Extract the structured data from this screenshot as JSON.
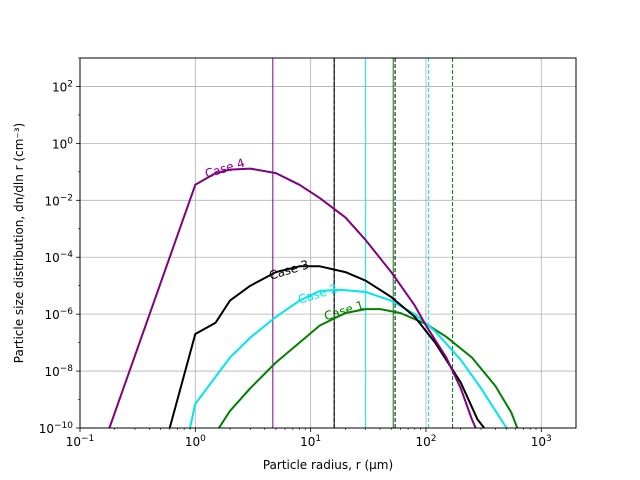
{
  "chart_data": {
    "type": "line",
    "xscale": "log",
    "yscale": "log",
    "xlim": [
      0.1,
      2000
    ],
    "ylim": [
      1e-10,
      1000
    ],
    "grid": true,
    "xlabel": "Particle radius, r (μm)",
    "ylabel": "Particle size distribution, dn/dln r (cm⁻³)",
    "x_ticks": [
      {
        "value": 0.1,
        "base": "10",
        "exp": "−1"
      },
      {
        "value": 1,
        "base": "10",
        "exp": "0"
      },
      {
        "value": 10,
        "base": "10",
        "exp": "1"
      },
      {
        "value": 100,
        "base": "10",
        "exp": "2"
      },
      {
        "value": 1000,
        "base": "10",
        "exp": "3"
      }
    ],
    "y_ticks": [
      {
        "value": 1e-10,
        "base": "10",
        "exp": "−10"
      },
      {
        "value": 1e-08,
        "base": "10",
        "exp": "−8"
      },
      {
        "value": 1e-06,
        "base": "10",
        "exp": "−6"
      },
      {
        "value": 0.0001,
        "base": "10",
        "exp": "−4"
      },
      {
        "value": 0.01,
        "base": "10",
        "exp": "−2"
      },
      {
        "value": 1,
        "base": "10",
        "exp": "0"
      },
      {
        "value": 100,
        "base": "10",
        "exp": "2"
      }
    ],
    "series": [
      {
        "name": "Case 1",
        "color": "#008000",
        "label_pos": [
          13.5,
          6e-07
        ],
        "points": [
          [
            1.6,
            1e-10
          ],
          [
            2,
            4e-10
          ],
          [
            3,
            2.5e-09
          ],
          [
            5,
            2e-08
          ],
          [
            8,
            1e-07
          ],
          [
            12,
            4e-07
          ],
          [
            20,
            1.1e-06
          ],
          [
            30,
            1.5e-06
          ],
          [
            40,
            1.5e-06
          ],
          [
            60,
            1.1e-06
          ],
          [
            100,
            4.5e-07
          ],
          [
            150,
            1.6e-07
          ],
          [
            250,
            3e-08
          ],
          [
            400,
            3e-09
          ],
          [
            550,
            3.5e-10
          ],
          [
            620,
            1e-10
          ]
        ]
      },
      {
        "name": "Case 2",
        "color": "#00e5ee",
        "label_pos": [
          8,
          2.3e-06
        ],
        "points": [
          [
            0.9,
            1e-10
          ],
          [
            1,
            7e-10
          ],
          [
            2,
            3e-08
          ],
          [
            3,
            1.5e-07
          ],
          [
            5,
            8e-07
          ],
          [
            8,
            3e-06
          ],
          [
            12,
            6.5e-06
          ],
          [
            18,
            7.2e-06
          ],
          [
            30,
            6e-06
          ],
          [
            50,
            3e-06
          ],
          [
            80,
            1e-06
          ],
          [
            120,
            2.5e-07
          ],
          [
            200,
            2.5e-08
          ],
          [
            300,
            2.5e-09
          ],
          [
            420,
            3e-10
          ],
          [
            500,
            1e-10
          ]
        ]
      },
      {
        "name": "Case 3",
        "color": "#000000",
        "label_pos": [
          4.5,
          1.6e-05
        ],
        "points": [
          [
            0.6,
            1e-10
          ],
          [
            1,
            2e-07
          ],
          [
            1.5,
            5e-07
          ],
          [
            2,
            3e-06
          ],
          [
            3,
            1e-05
          ],
          [
            5,
            3e-05
          ],
          [
            8,
            4.8e-05
          ],
          [
            12,
            4.8e-05
          ],
          [
            20,
            3e-05
          ],
          [
            30,
            1.5e-05
          ],
          [
            50,
            4e-06
          ],
          [
            80,
            8e-07
          ],
          [
            120,
            1e-07
          ],
          [
            200,
            4e-09
          ],
          [
            280,
            2e-10
          ],
          [
            320,
            1e-10
          ]
        ]
      },
      {
        "name": "Case 4",
        "color": "#800080",
        "label_pos": [
          1.25,
          0.06
        ],
        "points": [
          [
            0.18,
            1e-10
          ],
          [
            1,
            0.035
          ],
          [
            1.5,
            0.09
          ],
          [
            2,
            0.12
          ],
          [
            3,
            0.13
          ],
          [
            5,
            0.09
          ],
          [
            8,
            0.035
          ],
          [
            12,
            0.012
          ],
          [
            20,
            0.0025
          ],
          [
            30,
            0.0004
          ],
          [
            50,
            3e-05
          ],
          [
            80,
            2e-06
          ],
          [
            100,
            4e-07
          ],
          [
            150,
            3e-08
          ],
          [
            200,
            2.5e-09
          ],
          [
            250,
            2e-10
          ],
          [
            270,
            1e-10
          ]
        ]
      }
    ],
    "vlines": [
      {
        "x": 4.7,
        "color": "#800080",
        "style": "solid"
      },
      {
        "x": 16,
        "color": "#000000",
        "style": "solid"
      },
      {
        "x": 16,
        "color": "#000000",
        "style": "dashed"
      },
      {
        "x": 30,
        "color": "#00e5ee",
        "style": "solid"
      },
      {
        "x": 52,
        "color": "#008000",
        "style": "solid"
      },
      {
        "x": 54,
        "color": "#000000",
        "style": "dashed"
      },
      {
        "x": 105,
        "color": "#00e5ee",
        "style": "dashed"
      },
      {
        "x": 170,
        "color": "#008000",
        "style": "dashed"
      }
    ]
  }
}
